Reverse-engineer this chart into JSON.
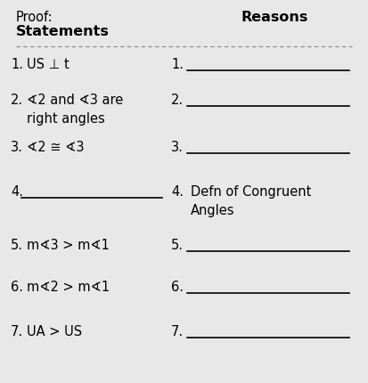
{
  "title": "Proof:",
  "col1_header": "Statements",
  "col2_header": "Reasons",
  "bg_color": "#e8e8e8",
  "row_bg": "#f0f0f0",
  "rows": [
    {
      "num": "1.",
      "statement": "US ⊥ t",
      "reason_num": "1.",
      "reason": ""
    },
    {
      "num": "2.",
      "statement": "∢2 and ∢3 are\nright angles",
      "reason_num": "2.",
      "reason": ""
    },
    {
      "num": "3.",
      "statement": "∢2 ≅ ∢3",
      "reason_num": "3.",
      "reason": ""
    },
    {
      "num": "4.",
      "statement": "",
      "reason_num": "4.",
      "reason": "Defn of Congruent\nAngles"
    },
    {
      "num": "5.",
      "statement": "m∢3 > m∢1",
      "reason_num": "5.",
      "reason": ""
    },
    {
      "num": "6.",
      "statement": "m∢2 > m∢1",
      "reason_num": "6.",
      "reason": ""
    },
    {
      "num": "7.",
      "statement": "UA > US",
      "reason_num": "7.",
      "reason": ""
    }
  ],
  "col_split": 0.46,
  "font_size_title": 10.5,
  "font_size_header": 11.5,
  "font_size_reasons": 11.5,
  "font_size_body": 10.5
}
